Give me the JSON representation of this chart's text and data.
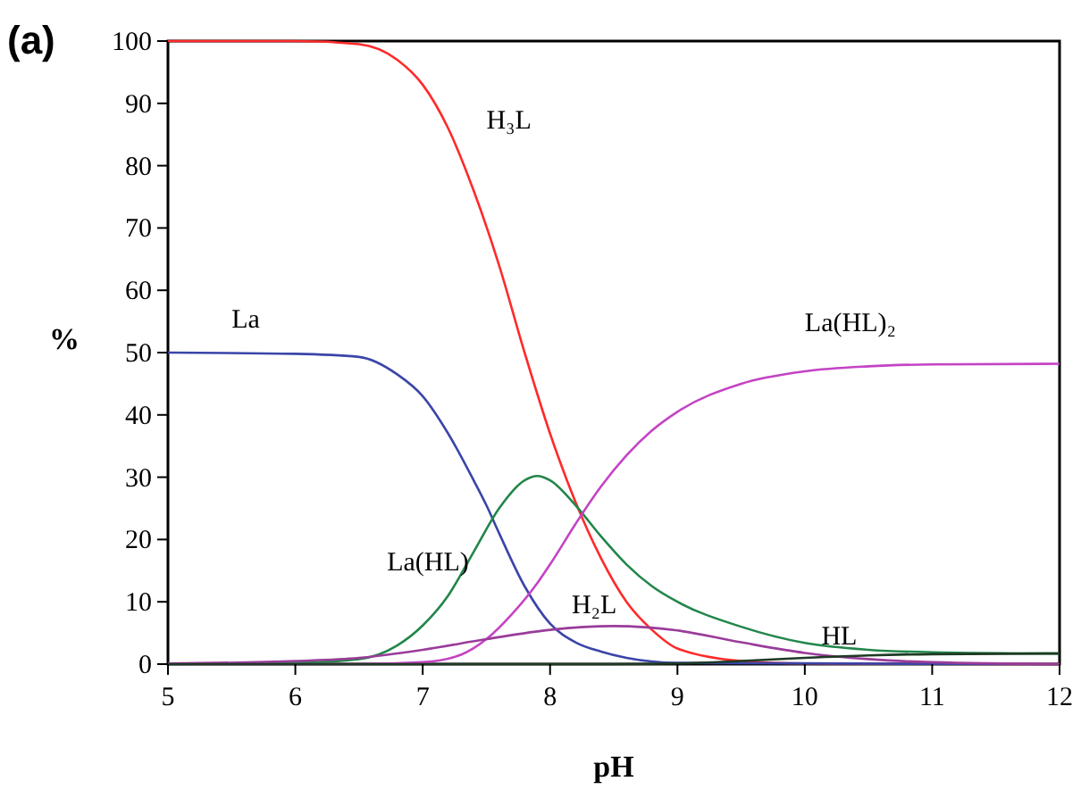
{
  "chart_data": {
    "type": "line",
    "xlabel": "pH",
    "ylabel": "%",
    "annotations": [
      "(a)"
    ],
    "xlim": [
      5,
      12
    ],
    "xticks": [
      5,
      6,
      7,
      8,
      9,
      10,
      11,
      12
    ],
    "ylim": [
      0,
      100
    ],
    "yticks": [
      0,
      10,
      20,
      30,
      40,
      50,
      60,
      70,
      80,
      90,
      100
    ],
    "grid": false,
    "marker": "none",
    "line_style": "solid",
    "series": [
      {
        "name": "H₃L",
        "color": "#ff2a2a",
        "x": [
          5,
          6,
          6.5,
          6.8,
          7,
          7.2,
          7.4,
          7.6,
          7.8,
          8,
          8.2,
          8.4,
          8.6,
          8.8,
          9,
          9.5,
          10,
          12
        ],
        "values": [
          100,
          100,
          99.5,
          97,
          93,
          86,
          76,
          64,
          50,
          37,
          26,
          17,
          10,
          5.5,
          2.5,
          0.5,
          0.1,
          0
        ]
      },
      {
        "name": "La",
        "color": "#3a45a8",
        "x": [
          5,
          6,
          6.5,
          6.8,
          7,
          7.2,
          7.4,
          7.5,
          7.6,
          7.8,
          8,
          8.2,
          8.4,
          8.6,
          9,
          12
        ],
        "values": [
          50,
          49.8,
          49.3,
          46.5,
          43,
          37,
          29.5,
          25.5,
          21,
          12.5,
          6.5,
          3.5,
          2,
          1,
          0.2,
          0
        ]
      },
      {
        "name": "La(HL)",
        "color": "#22864a",
        "x": [
          5,
          6,
          6.5,
          6.8,
          7,
          7.2,
          7.4,
          7.6,
          7.8,
          7.9,
          8,
          8.2,
          8.4,
          8.6,
          8.8,
          9,
          9.5,
          10,
          10.5,
          11,
          12
        ],
        "values": [
          0,
          0.2,
          0.8,
          3,
          6.2,
          11,
          18,
          25,
          29.5,
          30.2,
          29.5,
          25.5,
          20.5,
          16,
          12.5,
          10,
          6,
          3.4,
          2.3,
          1.9,
          1.7
        ]
      },
      {
        "name": "La(HL)₂",
        "color": "#c443c4",
        "x": [
          5,
          6.5,
          7,
          7.3,
          7.5,
          7.7,
          7.9,
          8,
          8.2,
          8.4,
          8.6,
          8.8,
          9,
          9.5,
          10,
          10.5,
          11,
          12
        ],
        "values": [
          0,
          0,
          0.3,
          1.5,
          4,
          8,
          13,
          16,
          22.5,
          28.5,
          33.5,
          37.5,
          40.5,
          45,
          47,
          47.8,
          48.1,
          48.2
        ]
      },
      {
        "name": "H₂L",
        "color": "#9a3c9a",
        "x": [
          5,
          6,
          6.5,
          7,
          7.5,
          8,
          8.5,
          9,
          9.5,
          10,
          10.5,
          11,
          12
        ],
        "values": [
          0.1,
          0.5,
          1,
          2.3,
          4,
          5.5,
          6.1,
          5.4,
          3.5,
          1.8,
          0.8,
          0.3,
          0
        ]
      },
      {
        "name": "HL",
        "color": "#1e3a24",
        "x": [
          5,
          8.5,
          9,
          9.5,
          10,
          10.5,
          11,
          12
        ],
        "values": [
          0,
          0,
          0.1,
          0.5,
          1,
          1.4,
          1.6,
          1.7
        ]
      }
    ]
  }
}
